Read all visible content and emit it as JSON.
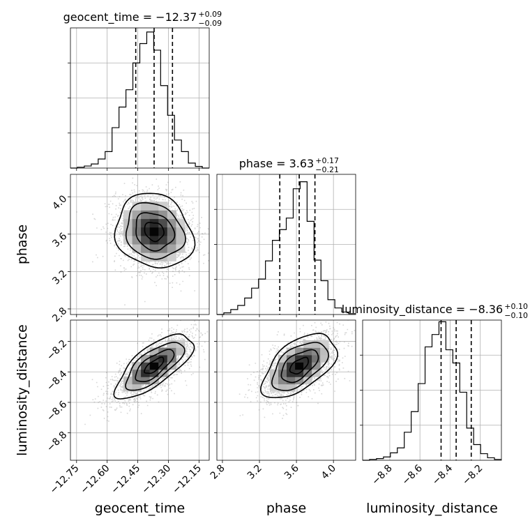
{
  "chart_data": {
    "type": "corner",
    "parameters": [
      "geocent_time",
      "phase",
      "luminosity_distance"
    ],
    "titles": [
      {
        "param": "geocent_time",
        "prefix": "geocent_time = −12.37",
        "plus": "+0.09",
        "minus": "−0.09"
      },
      {
        "param": "phase",
        "prefix": "phase = 3.63",
        "plus": "+0.17",
        "minus": "−0.21"
      },
      {
        "param": "luminosity_distance",
        "prefix": "luminosity_distance = −8.36",
        "plus": "+0.10",
        "minus": "−0.10"
      }
    ],
    "axis_labels": {
      "x": [
        "geocent_time",
        "phase",
        "luminosity_distance"
      ],
      "y": [
        "phase",
        "luminosity_distance"
      ]
    },
    "ranges": {
      "geocent_time": [
        -12.78,
        -12.1
      ],
      "phase": [
        2.74,
        4.24
      ],
      "luminosity_distance": [
        -8.98,
        -8.06
      ]
    },
    "ticks": {
      "geocent_time": {
        "values": [
          -12.75,
          -12.6,
          -12.45,
          -12.3,
          -12.15
        ],
        "labels": [
          "−12.75",
          "−12.60",
          "−12.45",
          "−12.30",
          "−12.15"
        ]
      },
      "phase": {
        "values": [
          2.8,
          3.2,
          3.6,
          4.0
        ],
        "labels": [
          "2.8",
          "3.2",
          "3.6",
          "4.0"
        ]
      },
      "luminosity_distance": {
        "values": [
          -8.8,
          -8.6,
          -8.4,
          -8.2
        ],
        "labels": [
          "−8.8",
          "−8.6",
          "−8.4",
          "−8.2"
        ]
      }
    },
    "quantiles": {
      "geocent_time": [
        -12.46,
        -12.37,
        -12.28
      ],
      "phase": [
        3.42,
        3.63,
        3.8
      ],
      "luminosity_distance": [
        -8.46,
        -8.36,
        -8.26
      ]
    },
    "histograms": {
      "geocent_time": {
        "edges_range": [
          -12.78,
          -12.1
        ],
        "bins": 20,
        "counts": [
          0,
          2,
          5,
          10,
          22,
          40,
          98,
          148,
          190,
          255,
          302,
          330,
          286,
          200,
          128,
          68,
          40,
          12,
          4,
          0
        ]
      },
      "phase": {
        "edges_range": [
          2.74,
          4.24
        ],
        "bins": 20,
        "counts": [
          0,
          4,
          12,
          22,
          40,
          64,
          86,
          130,
          180,
          206,
          234,
          305,
          322,
          226,
          132,
          82,
          36,
          16,
          6,
          2
        ]
      },
      "luminosity_distance": {
        "edges_range": [
          -8.98,
          -8.06
        ],
        "bins": 20,
        "counts": [
          0,
          2,
          4,
          8,
          18,
          30,
          68,
          118,
          186,
          275,
          305,
          336,
          268,
          236,
          165,
          78,
          38,
          16,
          6,
          2
        ]
      }
    },
    "ylim_hist": [
      0,
      340
    ],
    "correlations": {
      "phase|geocent_time": -0.15,
      "luminosity_distance|geocent_time": 0.72,
      "luminosity_distance|phase": 0.55
    },
    "contour_levels": [
      "0.5-sigma",
      "1-sigma",
      "1.5-sigma",
      "2-sigma"
    ],
    "grid": true
  }
}
